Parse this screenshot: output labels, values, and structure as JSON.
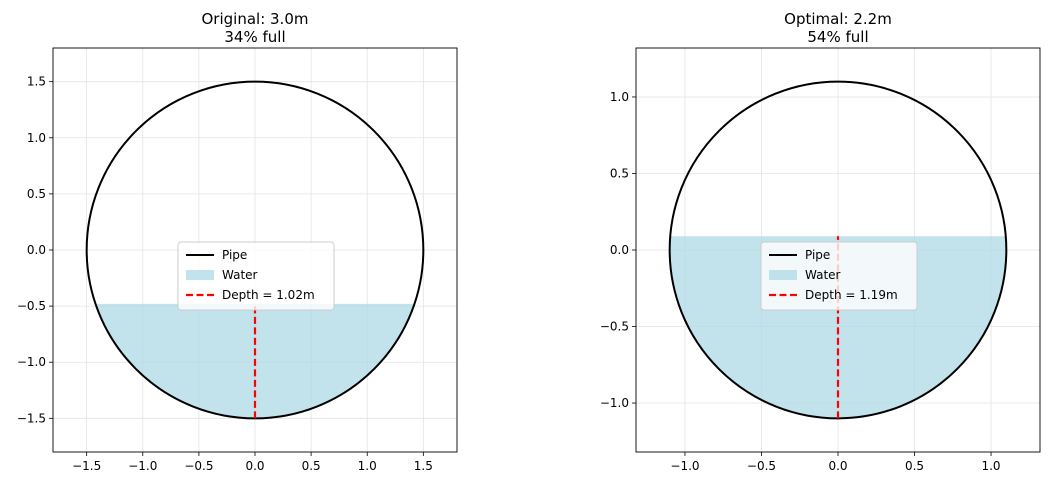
{
  "chart_data": [
    {
      "type": "area",
      "title_lines": [
        "Original: 3.0m",
        "34% full"
      ],
      "xlabel": "",
      "ylabel": "",
      "xlim": [
        -1.8,
        1.8
      ],
      "ylim": [
        -1.8,
        1.8
      ],
      "xticks": [
        -1.5,
        -1.0,
        -0.5,
        0.0,
        0.5,
        1.0,
        1.5
      ],
      "yticks": [
        -1.5,
        -1.0,
        -0.5,
        0.0,
        0.5,
        1.0,
        1.5
      ],
      "xtick_labels": [
        "−1.5",
        "−1.0",
        "−0.5",
        "0.0",
        "0.5",
        "1.0",
        "1.5"
      ],
      "ytick_labels": [
        "−1.5",
        "−1.0",
        "−0.5",
        "0.0",
        "0.5",
        "1.0",
        "1.5"
      ],
      "grid": true,
      "legend_position": "center",
      "pipe_radius": 1.5,
      "water_level": -0.48,
      "depth_line": {
        "x": 0.0,
        "y_from": -1.5,
        "y_to": -0.48
      },
      "series": [
        {
          "name": "Pipe",
          "kind": "line",
          "color": "#000000"
        },
        {
          "name": "Water",
          "kind": "fill",
          "color": "#add8e6"
        },
        {
          "name": "Depth = 1.02m",
          "kind": "dashed",
          "color": "#ff0000"
        }
      ]
    },
    {
      "type": "area",
      "title_lines": [
        "Optimal: 2.2m",
        "54% full"
      ],
      "xlabel": "",
      "ylabel": "",
      "xlim": [
        -1.32,
        1.32
      ],
      "ylim": [
        -1.32,
        1.32
      ],
      "xticks": [
        -1.0,
        -0.5,
        0.0,
        0.5,
        1.0
      ],
      "yticks": [
        -1.0,
        -0.5,
        0.0,
        0.5,
        1.0
      ],
      "xtick_labels": [
        "−1.0",
        "−0.5",
        "0.0",
        "0.5",
        "1.0"
      ],
      "ytick_labels": [
        "−1.0",
        "−0.5",
        "0.0",
        "0.5",
        "1.0"
      ],
      "grid": true,
      "legend_position": "center",
      "pipe_radius": 1.1,
      "water_level": 0.09,
      "depth_line": {
        "x": 0.0,
        "y_from": -1.1,
        "y_to": 0.09
      },
      "series": [
        {
          "name": "Pipe",
          "kind": "line",
          "color": "#000000"
        },
        {
          "name": "Water",
          "kind": "fill",
          "color": "#add8e6"
        },
        {
          "name": "Depth = 1.19m",
          "kind": "dashed",
          "color": "#ff0000"
        }
      ]
    }
  ]
}
